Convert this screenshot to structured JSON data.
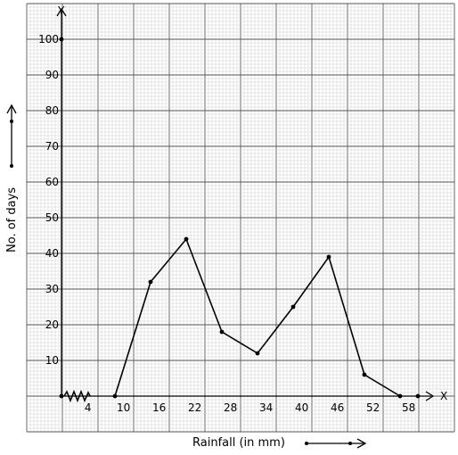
{
  "chart_data": {
    "type": "line",
    "xlabel": "Rainfall (in mm)",
    "ylabel": "No. of days",
    "x_axis_letter": "X",
    "y_axis_letter": "Y",
    "x_ticks": [
      4,
      10,
      16,
      22,
      28,
      34,
      40,
      46,
      52,
      58
    ],
    "x_tick_labels": [
      "4",
      "10",
      "16",
      "22",
      "28",
      "34",
      "40",
      "46",
      "52",
      "58"
    ],
    "y_ticks": [
      10,
      20,
      30,
      40,
      50,
      60,
      70,
      80,
      90,
      100
    ],
    "y_tick_labels": [
      "10",
      "20",
      "30",
      "40",
      "50",
      "60",
      "70",
      "80",
      "90",
      "100"
    ],
    "xlim": [
      0,
      63
    ],
    "ylim": [
      0,
      105
    ],
    "grid": true,
    "series": [
      {
        "x": [
          9,
          15,
          21,
          27,
          33,
          39,
          45,
          51,
          57
        ],
        "y": [
          0,
          32,
          44,
          18,
          12,
          25,
          39,
          6,
          0
        ]
      }
    ],
    "extra_axis_points": [
      {
        "x": 0,
        "y": 0
      },
      {
        "x": 0,
        "y": 100
      },
      {
        "x": 60,
        "y": 0
      }
    ]
  }
}
